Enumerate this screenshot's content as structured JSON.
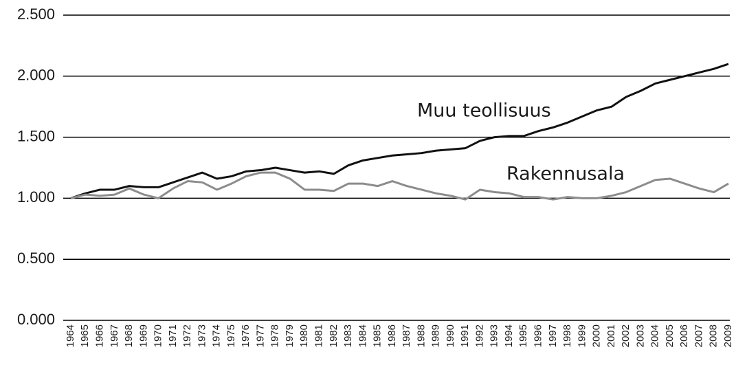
{
  "chart_data": {
    "type": "line",
    "categories": [
      "1964",
      "1965",
      "1966",
      "1967",
      "1968",
      "1969",
      "1970",
      "1971",
      "1972",
      "1973",
      "1974",
      "1975",
      "1976",
      "1977",
      "1978",
      "1979",
      "1980",
      "1981",
      "1982",
      "1983",
      "1984",
      "1985",
      "1986",
      "1987",
      "1988",
      "1989",
      "1990",
      "1991",
      "1992",
      "1993",
      "1994",
      "1995",
      "1996",
      "1997",
      "1998",
      "1999",
      "2000",
      "2001",
      "2002",
      "2003",
      "2004",
      "2005",
      "2006",
      "2007",
      "2008",
      "2009"
    ],
    "series": [
      {
        "name": "Muu teollisuus",
        "color": "#111111",
        "values": [
          1.0,
          1.04,
          1.07,
          1.07,
          1.1,
          1.09,
          1.09,
          1.13,
          1.17,
          1.21,
          1.16,
          1.18,
          1.22,
          1.23,
          1.25,
          1.23,
          1.21,
          1.22,
          1.2,
          1.27,
          1.31,
          1.33,
          1.35,
          1.36,
          1.37,
          1.39,
          1.4,
          1.41,
          1.47,
          1.5,
          1.51,
          1.51,
          1.55,
          1.58,
          1.62,
          1.67,
          1.72,
          1.75,
          1.83,
          1.88,
          1.94,
          1.97,
          2.0,
          2.03,
          2.06,
          2.1
        ]
      },
      {
        "name": "Rakennusala",
        "color": "#8c8c8c",
        "values": [
          1.0,
          1.03,
          1.02,
          1.03,
          1.08,
          1.03,
          1.0,
          1.08,
          1.14,
          1.13,
          1.07,
          1.12,
          1.18,
          1.21,
          1.21,
          1.16,
          1.07,
          1.07,
          1.06,
          1.12,
          1.12,
          1.1,
          1.14,
          1.1,
          1.07,
          1.04,
          1.02,
          0.99,
          1.07,
          1.05,
          1.04,
          1.01,
          1.01,
          0.99,
          1.01,
          1.0,
          1.0,
          1.02,
          1.05,
          1.1,
          1.15,
          1.16,
          1.12,
          1.08,
          1.05,
          1.12
        ]
      }
    ],
    "ylim": [
      0,
      2.5
    ],
    "yticks": [
      {
        "value": 0,
        "label": "0.000"
      },
      {
        "value": 0.5,
        "label": "0.500"
      },
      {
        "value": 1,
        "label": "1.000"
      },
      {
        "value": 1.5,
        "label": "1.500"
      },
      {
        "value": 2,
        "label": "2.000"
      },
      {
        "value": 2.5,
        "label": "2.500"
      }
    ],
    "grid": true
  }
}
